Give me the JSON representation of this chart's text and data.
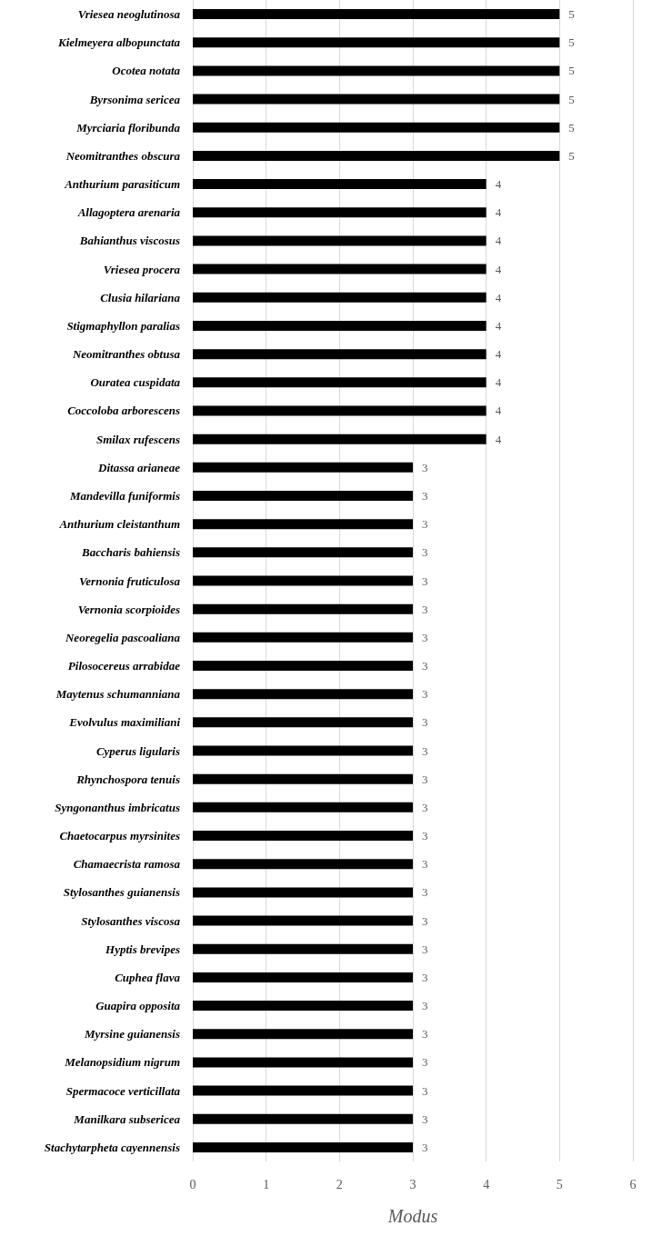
{
  "chart_data": {
    "type": "bar",
    "orientation": "horizontal",
    "xlabel": "Modus",
    "categories": [
      "Vriesea neoglutinosa",
      "Kielmeyera albopunctata",
      "Ocotea notata",
      "Byrsonima sericea",
      "Myrciaria floribunda",
      "Neomitranthes obscura",
      "Anthurium parasiticum",
      "Allagoptera arenaria",
      "Bahianthus viscosus",
      "Vriesea procera",
      "Clusia hilariana",
      "Stigmaphyllon paralias",
      "Neomitranthes obtusa",
      "Ouratea cuspidata",
      "Coccoloba arborescens",
      "Smilax rufescens",
      "Ditassa arianeae",
      "Mandevilla funiformis",
      "Anthurium cleistanthum",
      "Baccharis bahiensis",
      "Vernonia fruticulosa",
      "Vernonia scorpioides",
      "Neoregelia pascoaliana",
      "Pilosocereus arrabidae",
      "Maytenus schumanniana",
      "Evolvulus maximiliani",
      "Cyperus ligularis",
      "Rhynchospora tenuis",
      "Syngonanthus imbricatus",
      "Chaetocarpus myrsinites",
      "Chamaecrista ramosa",
      "Stylosanthes guianensis",
      "Stylosanthes viscosa",
      "Hyptis brevipes",
      "Cuphea flava",
      "Guapira opposita",
      "Myrsine guianensis",
      "Melanopsidium nigrum",
      "Spermacoce verticillata",
      "Manilkara subsericea",
      "Stachytarpheta cayennensis"
    ],
    "values": [
      5,
      5,
      5,
      5,
      5,
      5,
      4,
      4,
      4,
      4,
      4,
      4,
      4,
      4,
      4,
      4,
      3,
      3,
      3,
      3,
      3,
      3,
      3,
      3,
      3,
      3,
      3,
      3,
      3,
      3,
      3,
      3,
      3,
      3,
      3,
      3,
      3,
      3,
      3,
      3,
      3
    ],
    "color": "#000000",
    "xlim": [
      0,
      6
    ],
    "xticks": [
      0,
      1,
      2,
      3,
      4,
      5,
      6
    ],
    "grid": "x",
    "data_labels": true
  }
}
